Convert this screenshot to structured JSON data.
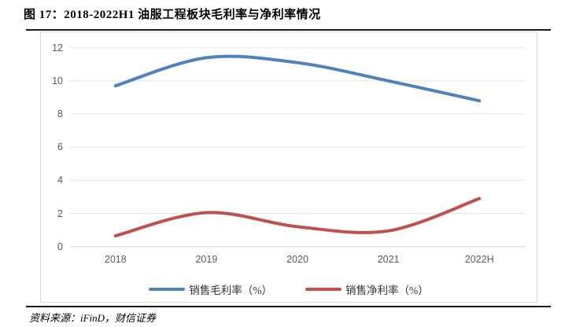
{
  "figure": {
    "title": "图 17：2018-2022H1 油服工程板块毛利率与净利率情况",
    "source": "资料来源：iFinD，财信证券"
  },
  "chart_data": {
    "type": "line",
    "title": "2018-2022H1 油服工程板块毛利率与净利率情况",
    "categories": [
      "2018",
      "2019",
      "2020",
      "2021",
      "2022H"
    ],
    "series": [
      {
        "key": "gross-margin",
        "name": "销售毛利率（%）",
        "color": "#4F81BD",
        "values": [
          9.7,
          11.4,
          11.1,
          10.0,
          8.8
        ]
      },
      {
        "key": "net-margin",
        "name": "销售净利率（%）",
        "color": "#C0504D",
        "values": [
          0.65,
          2.05,
          1.2,
          0.95,
          2.9
        ]
      }
    ],
    "xlabel": "",
    "ylabel": "",
    "ylim": [
      0,
      12
    ],
    "ytick_step": 2,
    "grid": true,
    "smooth": true,
    "legend_position": "bottom"
  },
  "colors": {
    "gridline": "#e4e4e4",
    "axis_line": "#cfcfcf",
    "panel_border": "#d9d9d9",
    "tick_text": "#595959",
    "divider": "#1a1a1a"
  }
}
